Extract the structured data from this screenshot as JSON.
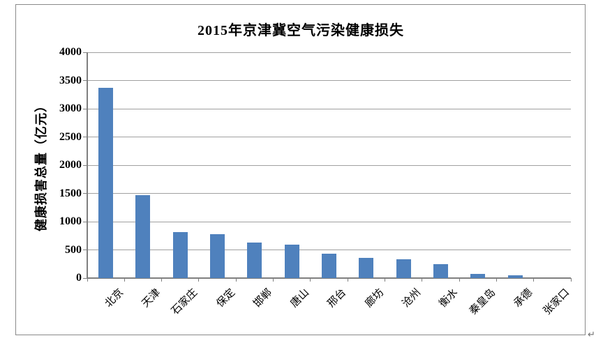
{
  "page": {
    "background": "#ffffff",
    "return_mark": "↵"
  },
  "chart_data": {
    "type": "bar",
    "title": "2015年京津冀空气污染健康损失",
    "ylabel": "健康损害总量（亿元）",
    "xlabel": "",
    "categories": [
      "北京",
      "天津",
      "石家庄",
      "保定",
      "邯郸",
      "唐山",
      "邢台",
      "廊坊",
      "沧州",
      "衡水",
      "秦皇岛",
      "承德",
      "张家口"
    ],
    "values": [
      3375,
      1465,
      810,
      780,
      630,
      590,
      430,
      358,
      337,
      250,
      76,
      48,
      0
    ],
    "ylim": [
      0,
      4000
    ],
    "ytick_step": 500,
    "ytick_labels": [
      "0",
      "500",
      "1000",
      "1500",
      "2000",
      "2500",
      "3000",
      "3500",
      "4000"
    ],
    "grid": true,
    "legend_position": "none",
    "bar_color": "#4F81BD",
    "gridline_color": "#a0a0a0",
    "axis_color": "#7f7f7f",
    "border_color": "#8a8a8a",
    "text_color": "#000000"
  }
}
